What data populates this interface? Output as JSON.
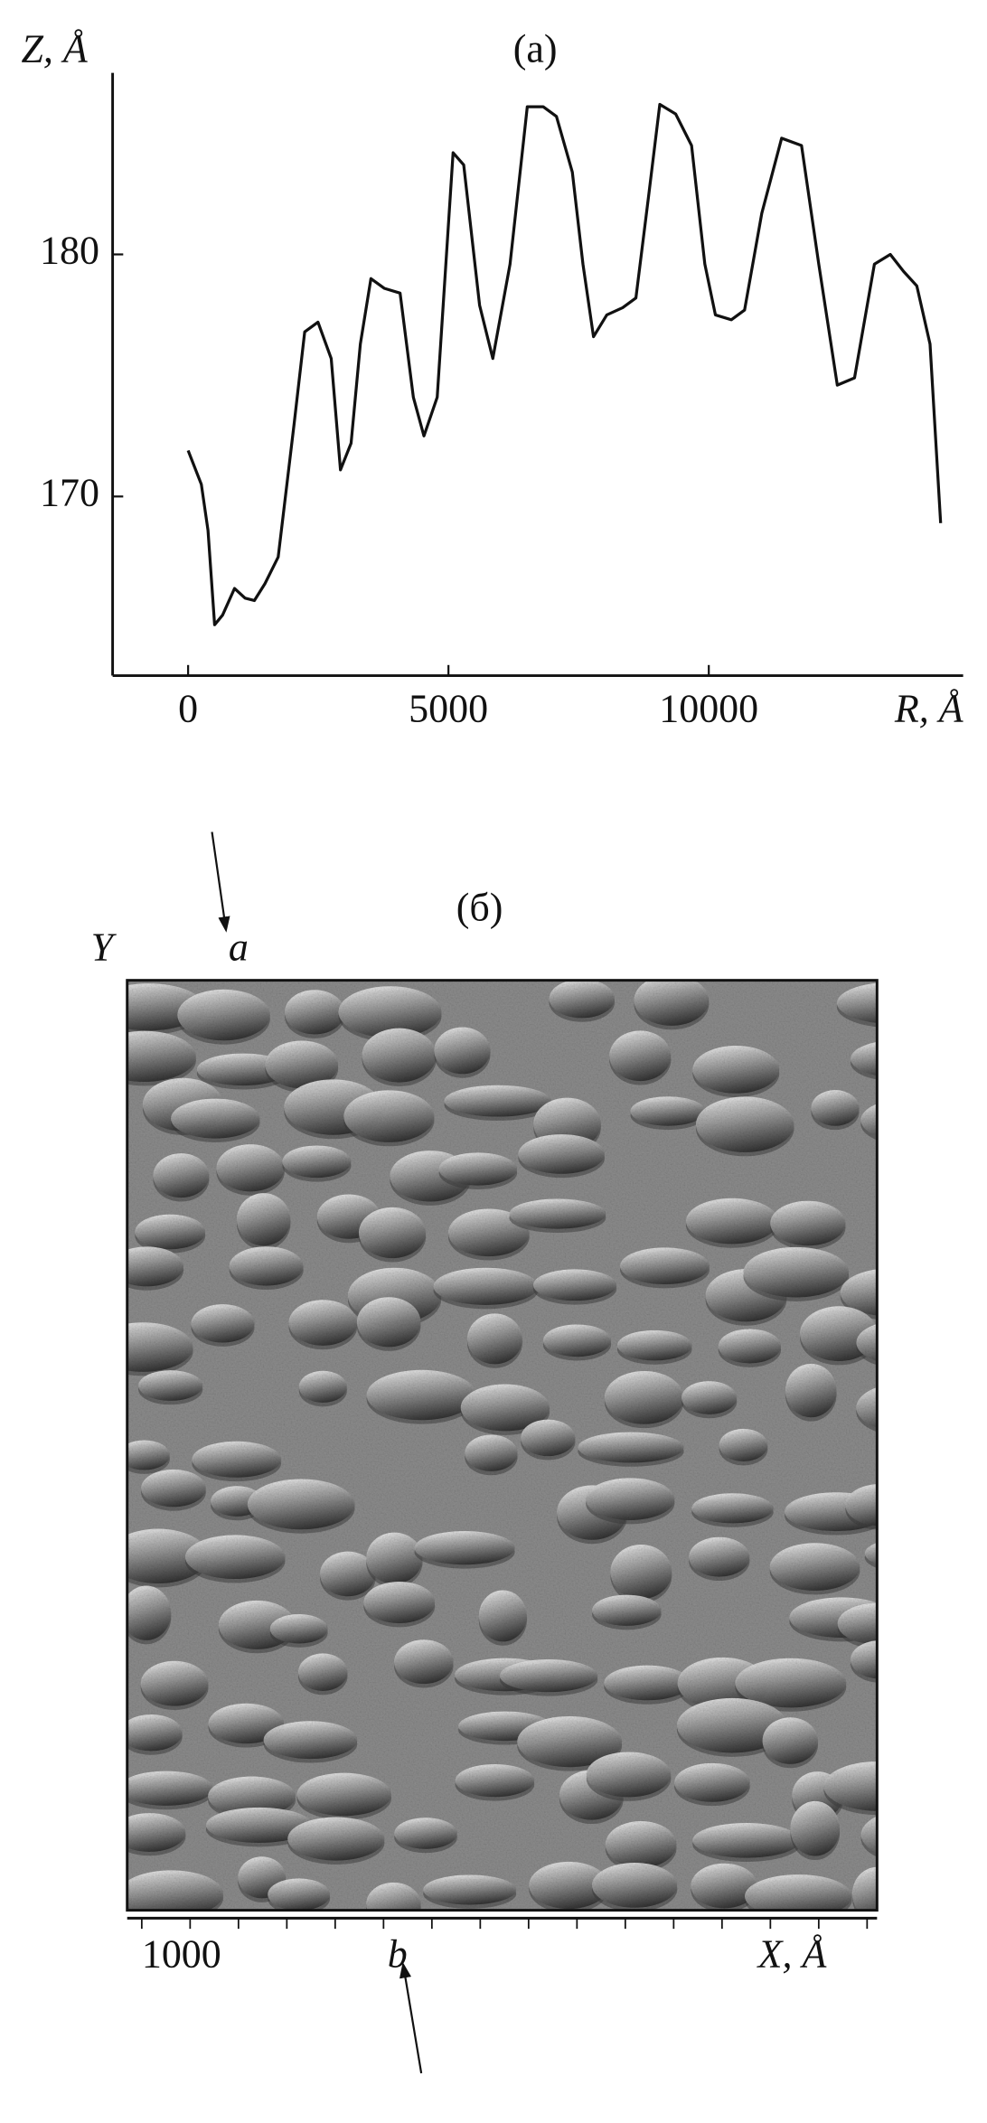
{
  "chart_data": {
    "type": "line",
    "title": "(a)",
    "y_label": "Z, Å",
    "x_label": "R, Å",
    "color": "#111111",
    "x": [
      0,
      254,
      382,
      509,
      662,
      891,
      1094,
      1272,
      1476,
      1730,
      2036,
      2239,
      2494,
      2748,
      2926,
      3130,
      3308,
      3511,
      3766,
      4071,
      4326,
      4529,
      4784,
      5089,
      5293,
      5598,
      5852,
      6183,
      6514,
      6819,
      7074,
      7379,
      7583,
      7786,
      8041,
      8346,
      8600,
      8855,
      9059,
      9364,
      9669,
      9924,
      10127,
      10433,
      10687,
      11018,
      11399,
      11781,
      12112,
      12468,
      12799,
      13181,
      13486,
      13740,
      13995,
      14249,
      14453
    ],
    "values": [
      171.9,
      170.5,
      168.6,
      164.7,
      165.1,
      166.2,
      165.8,
      165.7,
      166.4,
      167.5,
      173.0,
      176.8,
      177.2,
      175.7,
      171.1,
      172.2,
      176.3,
      179.0,
      178.6,
      178.4,
      174.1,
      172.5,
      174.1,
      184.2,
      183.7,
      177.9,
      175.7,
      179.6,
      186.1,
      186.1,
      185.7,
      183.4,
      179.6,
      176.6,
      177.5,
      177.8,
      178.2,
      182.6,
      186.2,
      185.8,
      184.5,
      179.6,
      177.5,
      177.3,
      177.7,
      181.7,
      184.8,
      184.5,
      179.6,
      174.6,
      174.9,
      179.6,
      180.0,
      179.3,
      178.7,
      176.3,
      168.9
    ],
    "xlim": [
      -1450,
      14885
    ],
    "ylim": [
      162.6,
      187.5
    ],
    "xticks": [
      0,
      5000,
      10000
    ],
    "yticks": [
      170,
      180
    ]
  },
  "image_panel": {
    "title": "(б)",
    "y_label": "Y",
    "x_label": "X, Å",
    "scale_label": "1000",
    "marker_top": "a",
    "marker_bottom": "b"
  }
}
